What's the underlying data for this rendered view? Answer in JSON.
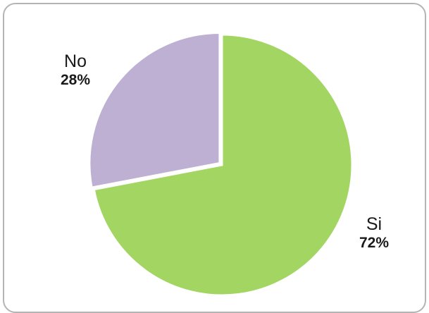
{
  "chart_data": {
    "type": "pie",
    "title": "",
    "legend": "none",
    "slices": [
      {
        "label": "Si",
        "value": 72,
        "value_label": "72%",
        "color": "#a2d561"
      },
      {
        "label": "No",
        "value": 28,
        "value_label": "28%",
        "color": "#beb0d3"
      }
    ]
  }
}
